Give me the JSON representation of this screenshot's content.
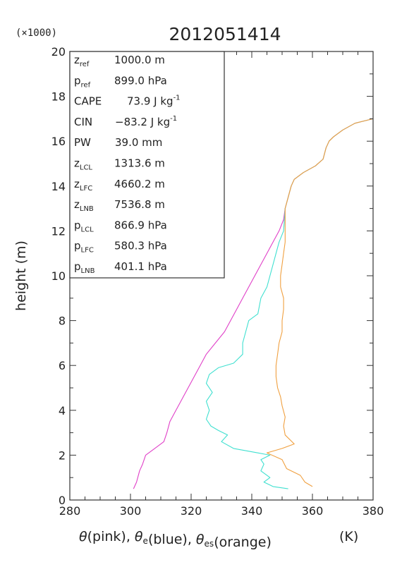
{
  "chart_data": {
    "type": "line",
    "title": "2012051414",
    "y_multiplier_label": "(×1000)",
    "ylabel": "height (m)",
    "xlabel_parts": [
      {
        "text": "θ",
        "sub": ""
      },
      {
        "text": "(pink), ",
        "sub": ""
      },
      {
        "text": "θ",
        "sub": "e"
      },
      {
        "text": "(blue), ",
        "sub": ""
      },
      {
        "text": "θ",
        "sub": "es"
      },
      {
        "text": "(orange)",
        "sub": ""
      }
    ],
    "xunit": "(K)",
    "xlim": [
      280,
      380
    ],
    "ylim": [
      0,
      20
    ],
    "xticks": [
      "280",
      "300",
      "320",
      "340",
      "360",
      "380"
    ],
    "yticks": [
      "0",
      "2",
      "4",
      "6",
      "8",
      "10",
      "12",
      "14",
      "16",
      "18",
      "20"
    ],
    "info_rows": [
      {
        "sym": "z",
        "sub": "ref",
        "value": "1000.0 m",
        "sup": ""
      },
      {
        "sym": "p",
        "sub": "ref",
        "value": "899.0 hPa",
        "sup": ""
      },
      {
        "sym": "CAPE",
        "sub": "",
        "value": "73.9 J kg",
        "sup": "-1"
      },
      {
        "sym": "CIN",
        "sub": "",
        "value": "−83.2 J kg",
        "sup": "-1"
      },
      {
        "sym": "PW",
        "sub": "",
        "value": "39.0 mm",
        "sup": ""
      },
      {
        "sym": "z",
        "sub": "LCL",
        "value": "1313.6 m",
        "sup": ""
      },
      {
        "sym": "z",
        "sub": "LFC",
        "value": "4660.2 m",
        "sup": ""
      },
      {
        "sym": "z",
        "sub": "LNB",
        "value": "7536.8 m",
        "sup": ""
      },
      {
        "sym": "p",
        "sub": "LCL",
        "value": "866.9 hPa",
        "sup": ""
      },
      {
        "sym": "p",
        "sub": "LFC",
        "value": "580.3 hPa",
        "sup": ""
      },
      {
        "sym": "p",
        "sub": "LNB",
        "value": "401.1 hPa",
        "sup": ""
      }
    ],
    "series": [
      {
        "color": "#e040c8",
        "points": [
          [
            301.0,
            0.5
          ],
          [
            302.0,
            0.8
          ],
          [
            303.0,
            1.3
          ],
          [
            304.0,
            1.6
          ],
          [
            305.0,
            2.0
          ],
          [
            308.0,
            2.3
          ],
          [
            311.0,
            2.6
          ],
          [
            312.0,
            3.0
          ],
          [
            313.0,
            3.5
          ],
          [
            315.0,
            4.0
          ],
          [
            317.0,
            4.5
          ],
          [
            319.0,
            5.0
          ],
          [
            321.0,
            5.5
          ],
          [
            323.0,
            6.0
          ],
          [
            325.0,
            6.5
          ],
          [
            328.0,
            7.0
          ],
          [
            331.0,
            7.5
          ],
          [
            333.0,
            8.0
          ],
          [
            335.0,
            8.5
          ],
          [
            337.0,
            9.0
          ],
          [
            339.0,
            9.5
          ],
          [
            341.0,
            10.0
          ],
          [
            343.0,
            10.5
          ],
          [
            345.0,
            11.0
          ],
          [
            347.0,
            11.5
          ],
          [
            349.0,
            12.0
          ],
          [
            350.5,
            12.5
          ],
          [
            351.0,
            13.0
          ],
          [
            352.0,
            13.5
          ],
          [
            353.0,
            14.0
          ],
          [
            354.0,
            14.3
          ],
          [
            357.0,
            14.6
          ],
          [
            361.0,
            14.9
          ],
          [
            363.5,
            15.2
          ],
          [
            364.5,
            15.7
          ],
          [
            365.5,
            16.0
          ],
          [
            367.0,
            16.2
          ],
          [
            370.0,
            16.5
          ],
          [
            374.0,
            16.8
          ],
          [
            380.0,
            17.0
          ]
        ]
      },
      {
        "color": "#40e0d0",
        "points": [
          [
            352.0,
            0.5
          ],
          [
            347.0,
            0.6
          ],
          [
            344.0,
            0.8
          ],
          [
            346.0,
            1.0
          ],
          [
            343.0,
            1.3
          ],
          [
            344.0,
            1.6
          ],
          [
            343.0,
            1.8
          ],
          [
            346.0,
            2.0
          ],
          [
            342.0,
            2.1
          ],
          [
            334.0,
            2.3
          ],
          [
            330.0,
            2.6
          ],
          [
            332.0,
            2.9
          ],
          [
            329.0,
            3.1
          ],
          [
            326.5,
            3.3
          ],
          [
            325.0,
            3.6
          ],
          [
            326.0,
            4.0
          ],
          [
            325.0,
            4.4
          ],
          [
            327.0,
            4.8
          ],
          [
            325.0,
            5.2
          ],
          [
            326.0,
            5.6
          ],
          [
            329.0,
            5.9
          ],
          [
            334.0,
            6.1
          ],
          [
            337.0,
            6.5
          ],
          [
            337.0,
            7.0
          ],
          [
            338.0,
            7.5
          ],
          [
            339.0,
            8.0
          ],
          [
            342.0,
            8.3
          ],
          [
            343.0,
            9.0
          ],
          [
            345.0,
            9.5
          ],
          [
            346.0,
            10.0
          ],
          [
            347.0,
            10.5
          ],
          [
            348.0,
            11.0
          ],
          [
            349.0,
            11.5
          ],
          [
            350.5,
            12.0
          ],
          [
            351.0,
            13.0
          ],
          [
            352.0,
            13.5
          ],
          [
            353.0,
            14.0
          ],
          [
            354.0,
            14.3
          ],
          [
            357.0,
            14.6
          ],
          [
            361.0,
            14.9
          ],
          [
            363.5,
            15.2
          ],
          [
            364.5,
            15.7
          ],
          [
            365.5,
            16.0
          ],
          [
            367.0,
            16.2
          ],
          [
            370.0,
            16.5
          ],
          [
            374.0,
            16.8
          ],
          [
            380.0,
            17.0
          ]
        ]
      },
      {
        "color": "#f0a040",
        "points": [
          [
            360.0,
            0.6
          ],
          [
            357.5,
            0.8
          ],
          [
            356.0,
            1.1
          ],
          [
            351.5,
            1.4
          ],
          [
            350.0,
            1.8
          ],
          [
            345.0,
            2.1
          ],
          [
            350.0,
            2.3
          ],
          [
            354.0,
            2.5
          ],
          [
            351.0,
            2.9
          ],
          [
            350.5,
            3.3
          ],
          [
            351.0,
            3.7
          ],
          [
            350.0,
            4.2
          ],
          [
            349.5,
            4.6
          ],
          [
            348.5,
            5.0
          ],
          [
            348.0,
            5.5
          ],
          [
            348.0,
            6.0
          ],
          [
            348.5,
            6.5
          ],
          [
            349.0,
            7.0
          ],
          [
            350.0,
            7.5
          ],
          [
            350.0,
            8.0
          ],
          [
            350.5,
            8.5
          ],
          [
            350.5,
            9.0
          ],
          [
            349.5,
            9.5
          ],
          [
            349.5,
            10.0
          ],
          [
            350.0,
            10.5
          ],
          [
            350.5,
            11.0
          ],
          [
            351.0,
            11.5
          ],
          [
            351.0,
            12.0
          ],
          [
            351.0,
            13.0
          ],
          [
            352.0,
            13.5
          ],
          [
            353.0,
            14.0
          ],
          [
            354.0,
            14.3
          ],
          [
            357.0,
            14.6
          ],
          [
            361.0,
            14.9
          ],
          [
            363.5,
            15.2
          ],
          [
            364.5,
            15.7
          ],
          [
            365.5,
            16.0
          ],
          [
            367.0,
            16.2
          ],
          [
            370.0,
            16.5
          ],
          [
            374.0,
            16.8
          ],
          [
            380.0,
            17.0
          ]
        ]
      }
    ]
  }
}
